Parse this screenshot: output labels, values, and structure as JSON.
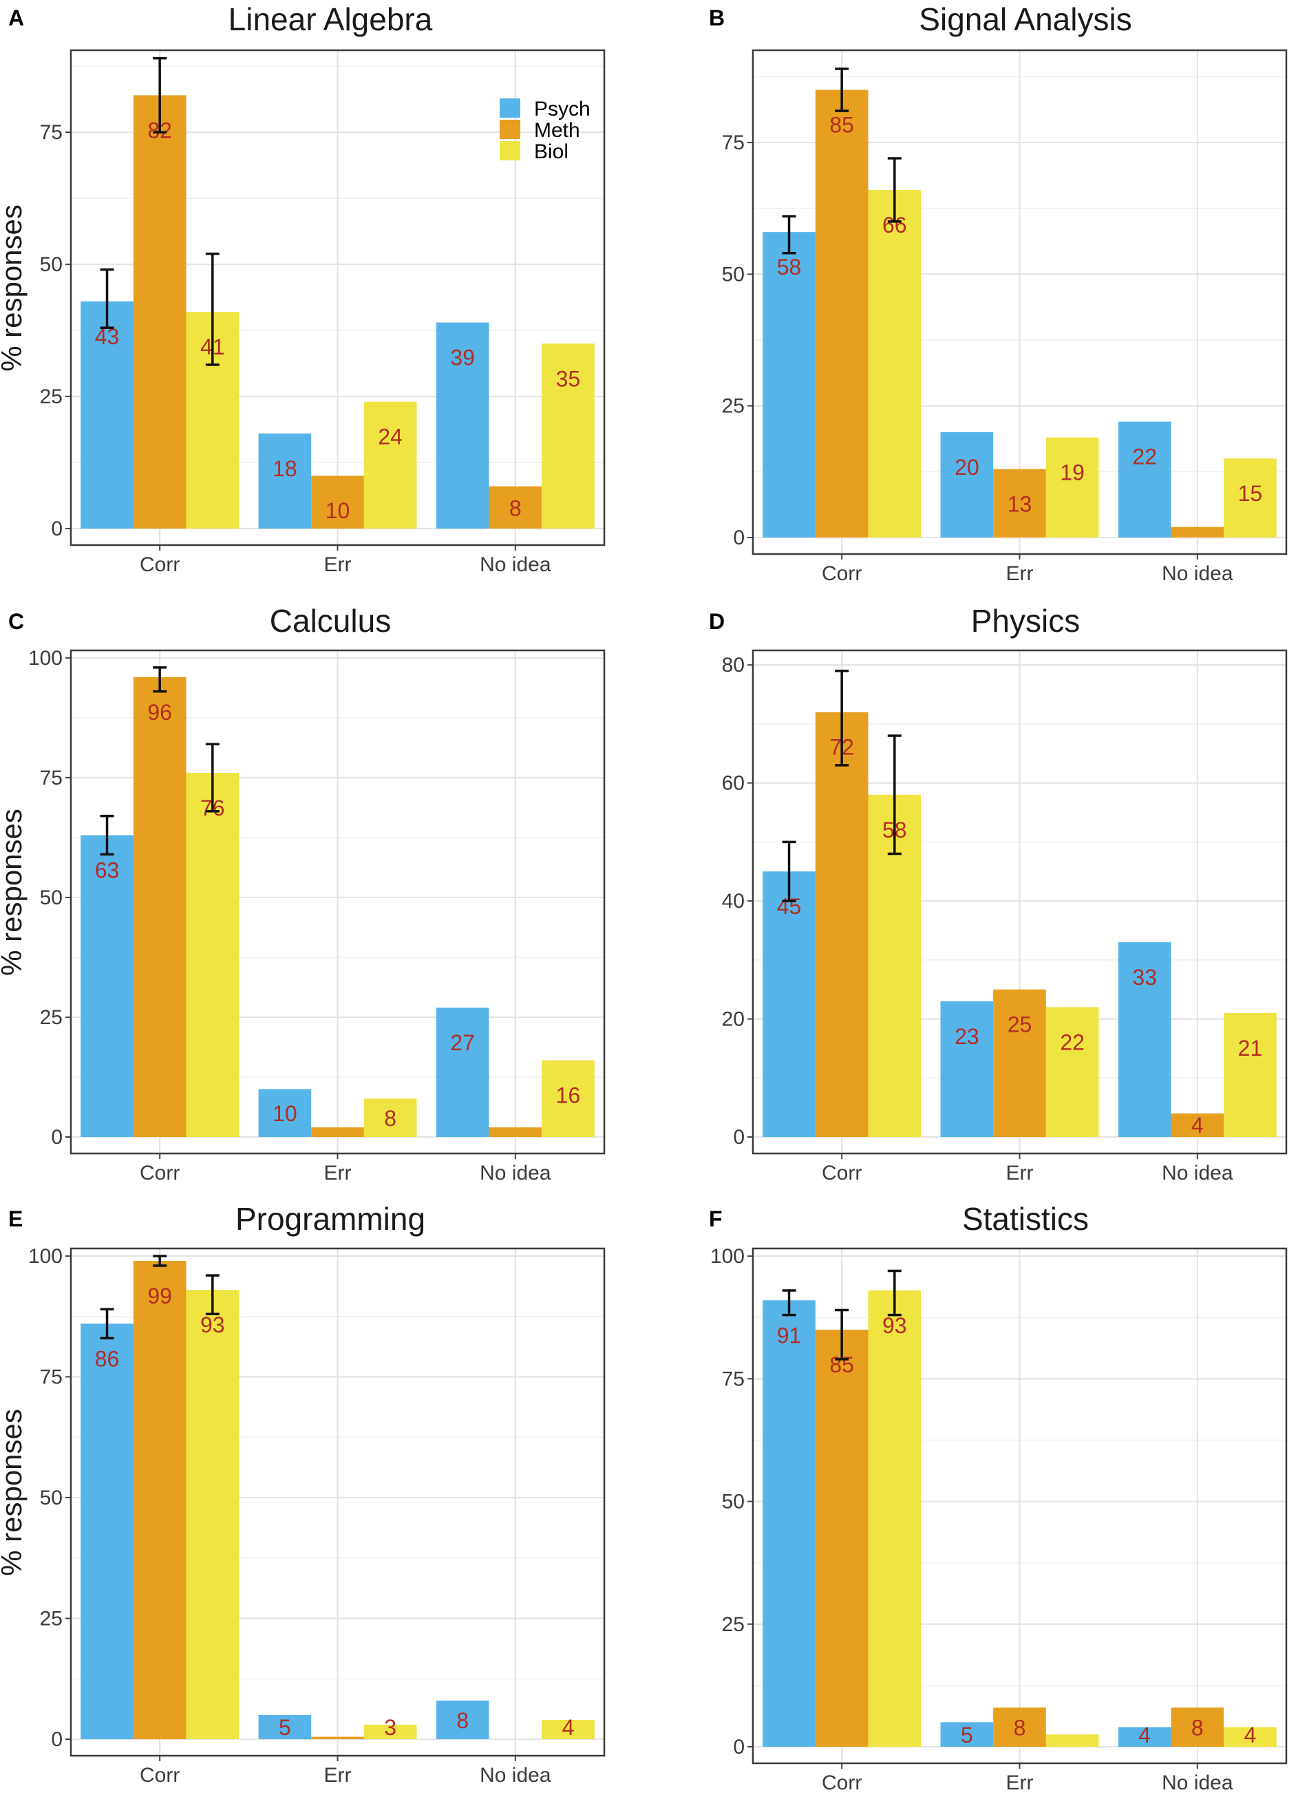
{
  "figure": {
    "ylabel": "% responses",
    "legend": [
      {
        "name": "Psych",
        "color": "#56b4e9"
      },
      {
        "name": "Meth",
        "color": "#e69f1f"
      },
      {
        "name": "Biol",
        "color": "#f0e442"
      }
    ],
    "data_label_color": "#b22d22"
  },
  "chart_data": [
    {
      "type": "bar",
      "letter": "A",
      "title": "Linear Algebra",
      "categories": [
        "Corr",
        "Err",
        "No idea"
      ],
      "ylim": [
        0,
        90
      ],
      "yticks": [
        0,
        25,
        50,
        75
      ],
      "ylabel": "% responses",
      "legend": "top-right",
      "series": [
        {
          "name": "Psych",
          "values": [
            43,
            18,
            39
          ],
          "labels": [
            "43",
            "18",
            "39"
          ],
          "errors": [
            [
              38,
              49
            ],
            null,
            null
          ]
        },
        {
          "name": "Meth",
          "values": [
            82,
            10,
            8
          ],
          "labels": [
            "82",
            "10",
            "8"
          ],
          "errors": [
            [
              75,
              89
            ],
            null,
            null
          ]
        },
        {
          "name": "Biol",
          "values": [
            41,
            24,
            35
          ],
          "labels": [
            "41",
            "24",
            "35"
          ],
          "errors": [
            [
              31,
              52
            ],
            null,
            null
          ]
        }
      ]
    },
    {
      "type": "bar",
      "letter": "B",
      "title": "Signal Analysis",
      "categories": [
        "Corr",
        "Err",
        "No idea"
      ],
      "ylim": [
        0,
        92
      ],
      "yticks": [
        0,
        25,
        50,
        75
      ],
      "ylabel": "",
      "series": [
        {
          "name": "Psych",
          "values": [
            58,
            20,
            22
          ],
          "labels": [
            "58",
            "20",
            "22"
          ],
          "errors": [
            [
              54,
              61
            ],
            null,
            null
          ]
        },
        {
          "name": "Meth",
          "values": [
            85,
            13,
            2
          ],
          "labels": [
            "85",
            "13",
            ""
          ],
          "errors": [
            [
              81,
              89
            ],
            null,
            null
          ]
        },
        {
          "name": "Biol",
          "values": [
            66,
            19,
            15
          ],
          "labels": [
            "66",
            "19",
            "15"
          ],
          "errors": [
            [
              60,
              72
            ],
            null,
            null
          ]
        }
      ]
    },
    {
      "type": "bar",
      "letter": "C",
      "title": "Calculus",
      "categories": [
        "Corr",
        "Err",
        "No idea"
      ],
      "ylim": [
        0,
        101
      ],
      "yticks": [
        0,
        25,
        50,
        75,
        100
      ],
      "ylabel": "% responses",
      "series": [
        {
          "name": "Psych",
          "values": [
            63,
            10,
            27
          ],
          "labels": [
            "63",
            "10",
            "27"
          ],
          "errors": [
            [
              59,
              67
            ],
            null,
            null
          ]
        },
        {
          "name": "Meth",
          "values": [
            96,
            2,
            2
          ],
          "labels": [
            "96",
            "",
            ""
          ],
          "errors": [
            [
              93,
              98
            ],
            null,
            null
          ]
        },
        {
          "name": "Biol",
          "values": [
            76,
            8,
            16
          ],
          "labels": [
            "76",
            "8",
            "16"
          ],
          "errors": [
            [
              68,
              82
            ],
            null,
            null
          ]
        }
      ]
    },
    {
      "type": "bar",
      "letter": "D",
      "title": "Physics",
      "categories": [
        "Corr",
        "Err",
        "No idea"
      ],
      "ylim": [
        0,
        82
      ],
      "yticks": [
        0,
        20,
        40,
        60,
        80
      ],
      "ylabel": "",
      "series": [
        {
          "name": "Psych",
          "values": [
            45,
            23,
            33
          ],
          "labels": [
            "45",
            "23",
            "33"
          ],
          "errors": [
            [
              40,
              50
            ],
            null,
            null
          ]
        },
        {
          "name": "Meth",
          "values": [
            72,
            25,
            4
          ],
          "labels": [
            "72",
            "25",
            "4"
          ],
          "errors": [
            [
              63,
              79
            ],
            null,
            null
          ]
        },
        {
          "name": "Biol",
          "values": [
            58,
            22,
            21
          ],
          "labels": [
            "58",
            "22",
            "21"
          ],
          "errors": [
            [
              48,
              68
            ],
            null,
            null
          ]
        }
      ]
    },
    {
      "type": "bar",
      "letter": "E",
      "title": "Programming",
      "categories": [
        "Corr",
        "Err",
        "No idea"
      ],
      "ylim": [
        0,
        101
      ],
      "yticks": [
        0,
        25,
        50,
        75,
        100
      ],
      "ylabel": "% responses",
      "series": [
        {
          "name": "Psych",
          "values": [
            86,
            5,
            8
          ],
          "labels": [
            "86",
            "5",
            "8"
          ],
          "errors": [
            [
              83,
              89
            ],
            null,
            null
          ]
        },
        {
          "name": "Meth",
          "values": [
            99,
            0.5,
            0
          ],
          "labels": [
            "99",
            "",
            ""
          ],
          "errors": [
            [
              98,
              100
            ],
            null,
            null
          ]
        },
        {
          "name": "Biol",
          "values": [
            93,
            3,
            4
          ],
          "labels": [
            "93",
            "3",
            "4"
          ],
          "errors": [
            [
              88,
              96
            ],
            null,
            null
          ]
        }
      ]
    },
    {
      "type": "bar",
      "letter": "F",
      "title": "Statistics",
      "categories": [
        "Corr",
        "Err",
        "No idea"
      ],
      "ylim": [
        0,
        101
      ],
      "yticks": [
        0,
        25,
        50,
        75,
        100
      ],
      "ylabel": "",
      "series": [
        {
          "name": "Psych",
          "values": [
            91,
            5,
            4
          ],
          "labels": [
            "91",
            "5",
            "4"
          ],
          "errors": [
            [
              88,
              93
            ],
            null,
            null
          ]
        },
        {
          "name": "Meth",
          "values": [
            85,
            8,
            8
          ],
          "labels": [
            "85",
            "8",
            "8"
          ],
          "errors": [
            [
              79,
              89
            ],
            null,
            null
          ]
        },
        {
          "name": "Biol",
          "values": [
            93,
            2.5,
            4
          ],
          "labels": [
            "93",
            "",
            "4"
          ],
          "errors": [
            [
              88,
              97
            ],
            null,
            null
          ]
        }
      ]
    }
  ]
}
